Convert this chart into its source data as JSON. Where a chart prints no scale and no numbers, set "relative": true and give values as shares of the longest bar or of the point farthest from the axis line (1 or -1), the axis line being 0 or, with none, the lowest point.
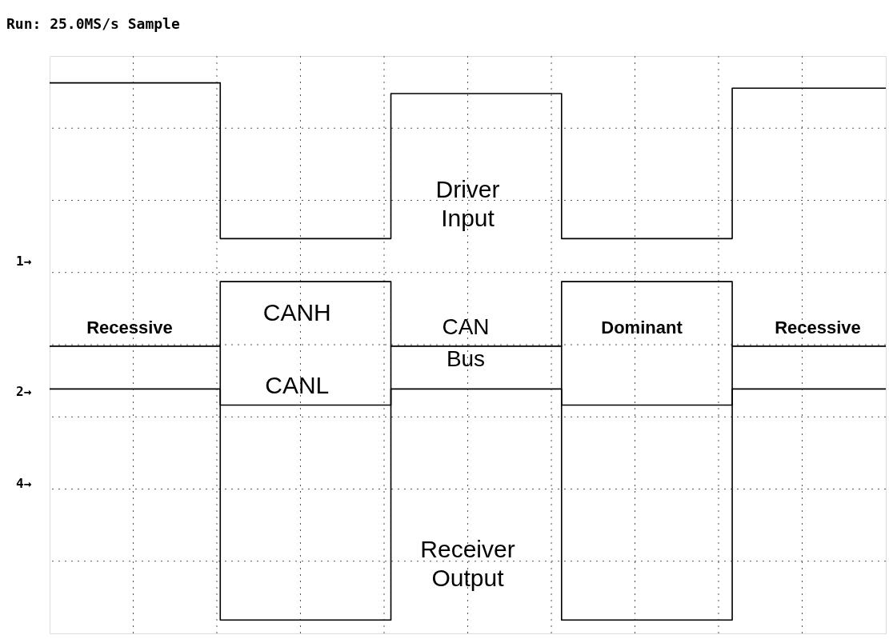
{
  "chart_data": {
    "type": "step",
    "relative": true,
    "title": "Run: 25.0MS/s    Sample",
    "categories": [
      null,
      null,
      null,
      null,
      null,
      null,
      null,
      null,
      null,
      null,
      null,
      null,
      null,
      null,
      null,
      null,
      null,
      null,
      null,
      null,
      null,
      null,
      null,
      null,
      null,
      null,
      null,
      null,
      null,
      null,
      null,
      null,
      null,
      null,
      null,
      null,
      null,
      null,
      null,
      null,
      null,
      null,
      null,
      null,
      null,
      null,
      null,
      null,
      null,
      null
    ],
    "series": [
      {
        "name": "Driver Input",
        "color": "#000000",
        "values": [
          1,
          1,
          1,
          1,
          1,
          1,
          1,
          1,
          1,
          1,
          0.71,
          0.71,
          0.71,
          0.71,
          0.71,
          0.71,
          0.71,
          0.71,
          0.71,
          0.71,
          0.98,
          0.98,
          0.98,
          0.98,
          0.98,
          0.98,
          0.98,
          0.98,
          0.98,
          0.98,
          0.71,
          0.71,
          0.71,
          0.71,
          0.71,
          0.71,
          0.71,
          0.71,
          0.71,
          0.71,
          0.99,
          0.99,
          0.99,
          0.99,
          0.99,
          0.99,
          0.99,
          0.99,
          0.99,
          0.99
        ]
      },
      {
        "name": "CANH",
        "color": "#000000",
        "values": [
          0.51,
          0.51,
          0.51,
          0.51,
          0.51,
          0.51,
          0.51,
          0.51,
          0.51,
          0.51,
          0.63,
          0.63,
          0.63,
          0.63,
          0.63,
          0.63,
          0.63,
          0.63,
          0.63,
          0.63,
          0.51,
          0.51,
          0.51,
          0.51,
          0.51,
          0.51,
          0.51,
          0.51,
          0.51,
          0.51,
          0.63,
          0.63,
          0.63,
          0.63,
          0.63,
          0.63,
          0.63,
          0.63,
          0.63,
          0.63,
          0.51,
          0.51,
          0.51,
          0.51,
          0.51,
          0.51,
          0.51,
          0.51,
          0.51,
          0.51
        ]
      },
      {
        "name": "CANL",
        "color": "#000000",
        "values": [
          0.51,
          0.51,
          0.51,
          0.51,
          0.51,
          0.51,
          0.51,
          0.51,
          0.51,
          0.51,
          0.4,
          0.4,
          0.4,
          0.4,
          0.4,
          0.4,
          0.4,
          0.4,
          0.4,
          0.4,
          0.51,
          0.51,
          0.51,
          0.51,
          0.51,
          0.51,
          0.51,
          0.51,
          0.51,
          0.51,
          0.4,
          0.4,
          0.4,
          0.4,
          0.4,
          0.4,
          0.4,
          0.4,
          0.4,
          0.4,
          0.51,
          0.51,
          0.51,
          0.51,
          0.51,
          0.51,
          0.51,
          0.51,
          0.51,
          0.51
        ]
      },
      {
        "name": "Receiver Output",
        "color": "#000000",
        "values": [
          0.43,
          0.43,
          0.43,
          0.43,
          0.43,
          0.43,
          0.43,
          0.43,
          0.43,
          0.43,
          0,
          0,
          0,
          0,
          0,
          0,
          0,
          0,
          0,
          0,
          0.43,
          0.43,
          0.43,
          0.43,
          0.43,
          0.43,
          0.43,
          0.43,
          0.43,
          0.43,
          0,
          0,
          0,
          0,
          0,
          0,
          0,
          0,
          0,
          0,
          0.43,
          0.43,
          0.43,
          0.43,
          0.43,
          0.43,
          0.43,
          0.43,
          0.43,
          0.43
        ]
      }
    ],
    "annotations": [
      "Recessive",
      "CAN Bus",
      "Dominant",
      "Recessive",
      "1→",
      "2→",
      "4→"
    ],
    "grid": true,
    "line_style": "solid"
  }
}
